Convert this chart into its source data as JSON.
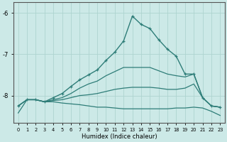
{
  "xlabel": "Humidex (Indice chaleur)",
  "bg_color": "#cce9e7",
  "line_color": "#2e7d78",
  "grid_color": "#aed4d0",
  "axis_color": "#2e7d78",
  "tick_color": "#000000",
  "xlim": [
    -0.5,
    23.5
  ],
  "ylim": [
    -8.65,
    -5.75
  ],
  "yticks": [
    -8,
    -7,
    -6
  ],
  "xticks": [
    0,
    1,
    2,
    3,
    4,
    5,
    6,
    7,
    8,
    9,
    10,
    11,
    12,
    13,
    14,
    15,
    16,
    17,
    18,
    19,
    20,
    21,
    22,
    23
  ],
  "lines": [
    {
      "x": [
        0,
        1,
        2,
        3,
        4,
        5,
        6,
        7,
        8,
        9,
        10,
        11,
        12,
        13,
        14,
        15,
        16,
        17,
        18,
        19,
        20,
        21,
        22,
        23
      ],
      "y": [
        -8.25,
        -8.1,
        -8.1,
        -8.15,
        -8.05,
        -7.95,
        -7.78,
        -7.62,
        -7.5,
        -7.38,
        -7.15,
        -6.95,
        -6.68,
        -6.08,
        -6.28,
        -6.38,
        -6.65,
        -6.88,
        -7.05,
        -7.48,
        -7.48,
        -8.05,
        -8.25,
        -8.28
      ],
      "marker": "+",
      "lw": 1.0
    },
    {
      "x": [
        0,
        1,
        2,
        3,
        4,
        5,
        6,
        7,
        8,
        9,
        10,
        11,
        12,
        13,
        14,
        15,
        16,
        17,
        18,
        19,
        20,
        21,
        22,
        23
      ],
      "y": [
        -8.25,
        -8.1,
        -8.1,
        -8.15,
        -8.1,
        -8.05,
        -7.95,
        -7.82,
        -7.72,
        -7.65,
        -7.52,
        -7.42,
        -7.32,
        -7.32,
        -7.32,
        -7.32,
        -7.4,
        -7.48,
        -7.52,
        -7.55,
        -7.48,
        -8.05,
        -8.25,
        -8.28
      ],
      "marker": null,
      "lw": 0.9
    },
    {
      "x": [
        0,
        1,
        2,
        3,
        4,
        5,
        6,
        7,
        8,
        9,
        10,
        11,
        12,
        13,
        14,
        15,
        16,
        17,
        18,
        19,
        20,
        21,
        22,
        23
      ],
      "y": [
        -8.25,
        -8.1,
        -8.1,
        -8.15,
        -8.12,
        -8.1,
        -8.05,
        -8.0,
        -7.98,
        -7.95,
        -7.9,
        -7.85,
        -7.82,
        -7.8,
        -7.8,
        -7.8,
        -7.82,
        -7.85,
        -7.85,
        -7.82,
        -7.72,
        -8.05,
        -8.25,
        -8.28
      ],
      "marker": null,
      "lw": 0.9
    },
    {
      "x": [
        0,
        1,
        2,
        3,
        4,
        5,
        6,
        7,
        8,
        9,
        10,
        11,
        12,
        13,
        14,
        15,
        16,
        17,
        18,
        19,
        20,
        21,
        22,
        23
      ],
      "y": [
        -8.42,
        -8.1,
        -8.1,
        -8.15,
        -8.15,
        -8.18,
        -8.2,
        -8.22,
        -8.25,
        -8.28,
        -8.28,
        -8.3,
        -8.32,
        -8.32,
        -8.32,
        -8.32,
        -8.32,
        -8.32,
        -8.3,
        -8.3,
        -8.28,
        -8.3,
        -8.38,
        -8.48
      ],
      "marker": null,
      "lw": 0.9
    }
  ]
}
